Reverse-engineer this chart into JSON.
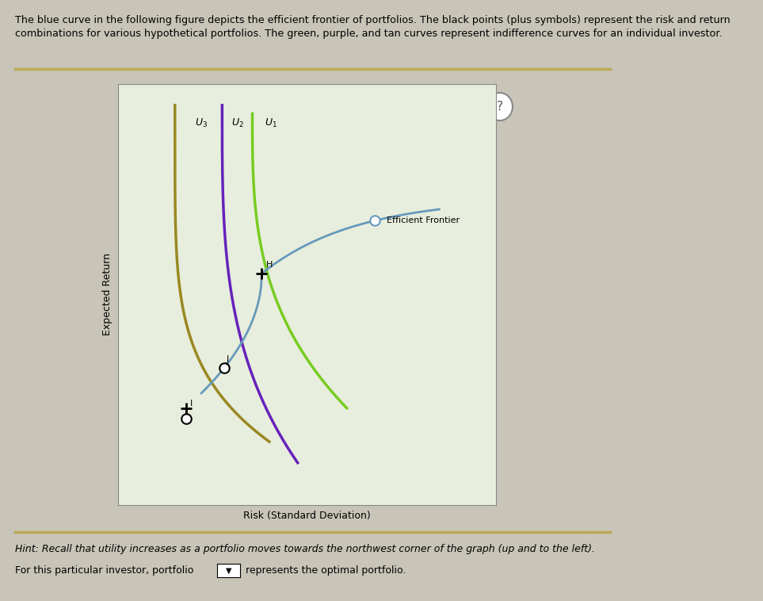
{
  "outer_bg_color": "#c8c4b8",
  "plot_bg_color": "#e8eedd",
  "title_line1": "The blue curve in the following figure depicts the efficient frontier of portfolios. The black points (plus symbols) represent the risk and return",
  "title_line2": "combinations for various hypothetical portfolios. The green, purple, and tan curves represent indifference curves for an individual investor.",
  "hint_text": "Hint: Recall that utility increases as a portfolio moves towards the northwest corner of the graph (up and to the left).",
  "bottom_text": "For this particular investor, portfolio",
  "bottom_text2": "represents the optimal portfolio.",
  "xlabel": "Risk (Standard Deviation)",
  "ylabel": "Expected Return",
  "ef_color": "#6699bb",
  "u1_color": "#77cc22",
  "u2_color": "#6622bb",
  "u3_color": "#998822",
  "separator_color": "#bbaa55",
  "grid_color": "#c8ddc0"
}
